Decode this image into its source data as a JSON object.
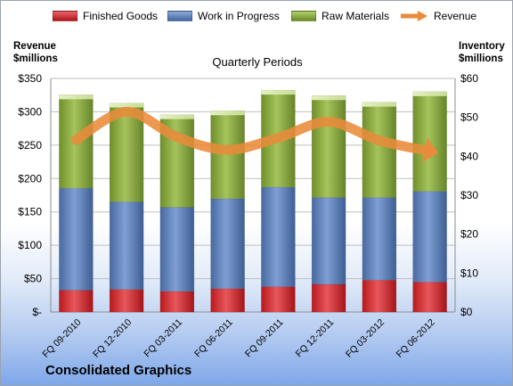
{
  "chart_data": {
    "type": "bar",
    "title": "Quarterly Periods",
    "left_axis_title": [
      "Revenue",
      "$millions"
    ],
    "right_axis_title": [
      "Inventory",
      "$millions"
    ],
    "categories": [
      "FQ 09-2010",
      "FQ 12-2010",
      "FQ 03-2011",
      "FQ 06-2011",
      "FQ 09-2011",
      "FQ 12-2011",
      "FQ 03-2012",
      "FQ 06-2012"
    ],
    "stacked": true,
    "series": [
      {
        "name": "Finished Goods",
        "axis": "right",
        "color": "#d12a2e",
        "values": [
          5.6,
          5.8,
          5.3,
          6.0,
          6.5,
          7.1,
          8.2,
          7.7
        ]
      },
      {
        "name": "Work in Progress",
        "axis": "right",
        "color": "#5b7fb8",
        "values": [
          26.2,
          22.5,
          21.6,
          23.1,
          25.6,
          22.3,
          21.2,
          23.3
        ]
      },
      {
        "name": "Raw Materials",
        "axis": "right",
        "color": "#86a83a",
        "values": [
          24.0,
          25.4,
          23.8,
          22.6,
          24.9,
          26.2,
          24.5,
          25.6
        ]
      }
    ],
    "line_series": {
      "name": "Revenue",
      "axis": "left",
      "color": "#e98b3a",
      "values": [
        258,
        300,
        262,
        243,
        261,
        285,
        257,
        241
      ]
    },
    "left_axis": {
      "min": 0,
      "max": 350,
      "ticks": [
        "$-",
        "$50",
        "$100",
        "$150",
        "$200",
        "$250",
        "$300",
        "$350"
      ]
    },
    "right_axis": {
      "min": 0,
      "max": 60,
      "ticks": [
        "$0",
        "$10",
        "$20",
        "$30",
        "$40",
        "$50",
        "$60"
      ]
    },
    "legend_position": "top",
    "grid": true
  },
  "company": "Consolidated Graphics"
}
